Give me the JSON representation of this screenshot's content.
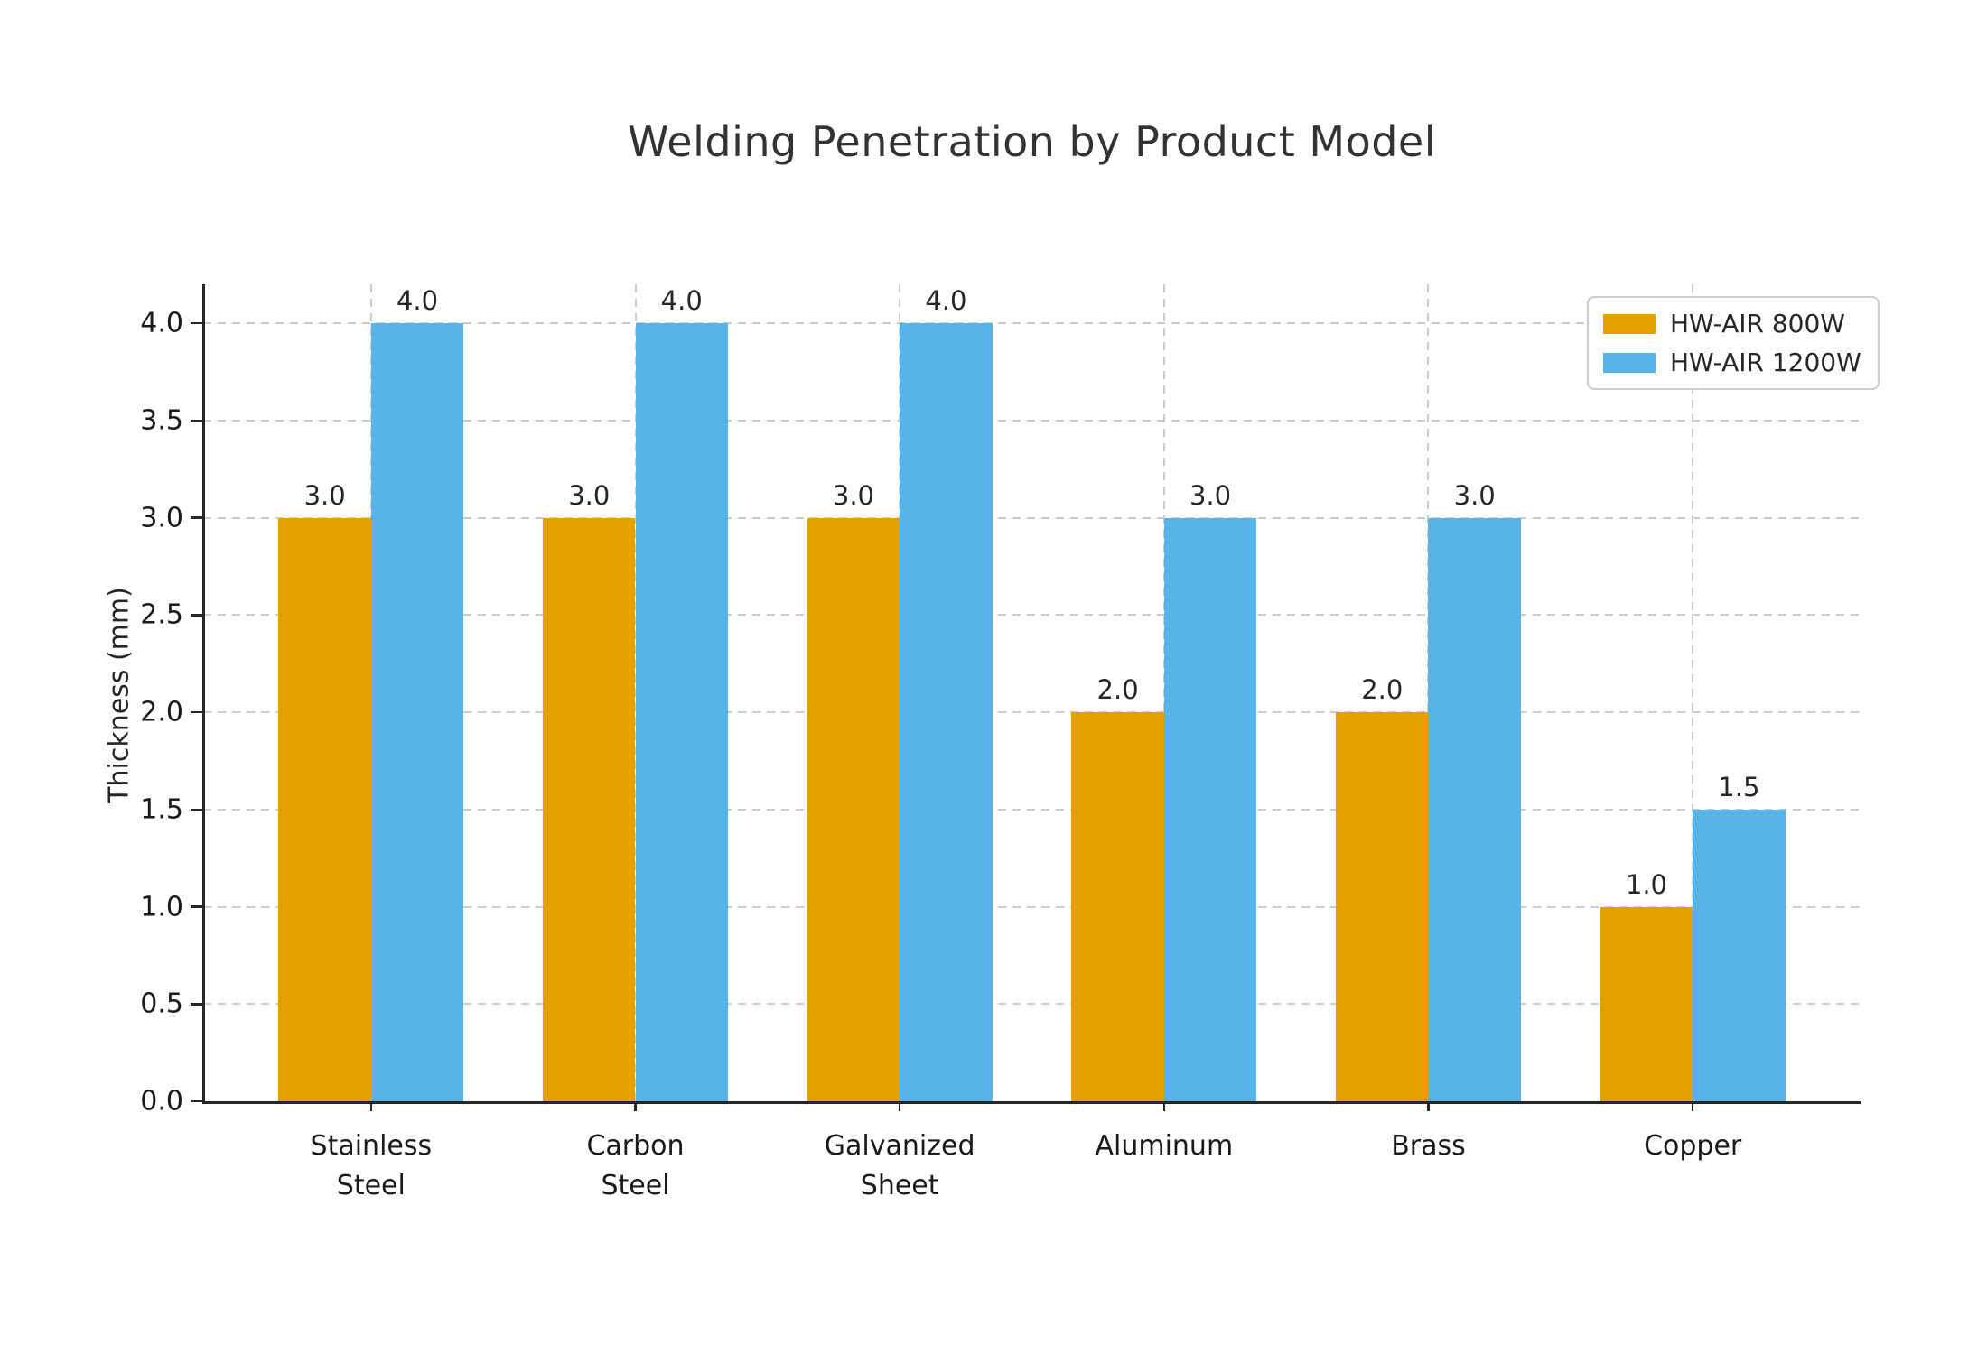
{
  "title": "Welding Penetration by Product Model",
  "chart_data": {
    "type": "bar",
    "title": "Welding Penetration by Product Model",
    "xlabel": "",
    "ylabel": "Thickness (mm)",
    "categories": [
      "Stainless\nSteel",
      "Carbon\nSteel",
      "Galvanized\nSheet",
      "Aluminum",
      "Brass",
      "Copper"
    ],
    "series": [
      {
        "name": "HW-AIR 800W",
        "color": "#E69F00",
        "values": [
          3.0,
          3.0,
          3.0,
          2.0,
          2.0,
          1.0
        ]
      },
      {
        "name": "HW-AIR 1200W",
        "color": "#56B4E9",
        "values": [
          4.0,
          4.0,
          4.0,
          3.0,
          3.0,
          1.5
        ]
      }
    ],
    "ylim": [
      0,
      4.2
    ],
    "yticks": [
      0.0,
      0.5,
      1.0,
      1.5,
      2.0,
      2.5,
      3.0,
      3.5,
      4.0
    ],
    "ytick_labels": [
      "0.0",
      "0.5",
      "1.0",
      "1.5",
      "2.0",
      "2.5",
      "3.0",
      "3.5",
      "4.0"
    ],
    "bar_value_labels": [
      "3.0",
      "4.0",
      "3.0",
      "4.0",
      "3.0",
      "4.0",
      "2.0",
      "3.0",
      "2.0",
      "3.0",
      "1.0",
      "1.5"
    ],
    "grid": "both-dashed",
    "legend_position": "upper-right"
  },
  "colors": {
    "background": "#ffffff",
    "series_800w": "#E69F00",
    "series_1200w": "#56B4E9",
    "grid": "#cccccc",
    "spine": "#262626",
    "text": "#262626",
    "legend_border": "#cccccc"
  }
}
